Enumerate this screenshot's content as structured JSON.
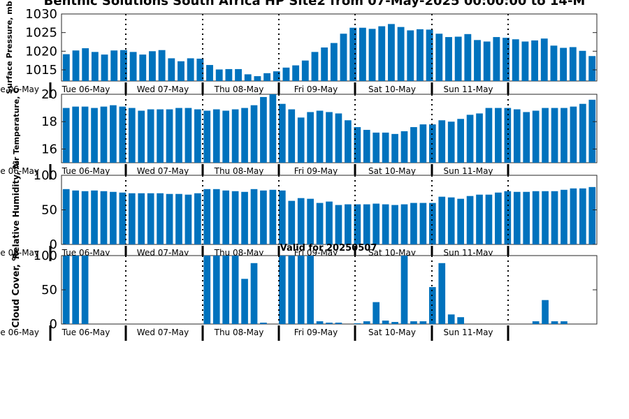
{
  "figure": {
    "title": "Benthic Solutions South Africa HP Site2 from 07-May-2025 00:00:00 to 14-M",
    "annotation": "Valid for 20250507",
    "bar_color": "#0072bd",
    "divider_style": "dotted"
  },
  "chart_data": [
    {
      "type": "bar",
      "id": "pressure",
      "ylabel": "Surface Pressure, mb",
      "ylim": [
        1012,
        1030
      ],
      "yticks": [
        1015,
        1020,
        1025,
        1030
      ],
      "x_tick_labels": [
        "Tue 06-May",
        "Wed 07-May",
        "Thu 08-May",
        "Fri 09-May",
        "Sat 10-May",
        "Sun 11-May"
      ],
      "left_cut_label": "Tue 06-May",
      "values": [
        1019.2,
        1020.2,
        1020.8,
        1019.8,
        1019.1,
        1020.2,
        1020.3,
        1019.8,
        1019.1,
        1020.0,
        1020.3,
        1018.1,
        1017.3,
        1018.1,
        1018.0,
        1016.3,
        1015.1,
        1015.2,
        1015.2,
        1013.8,
        1013.3,
        1014.1,
        1014.6,
        1015.6,
        1016.2,
        1017.5,
        1019.8,
        1021.0,
        1022.2,
        1024.7,
        1026.3,
        1026.3,
        1026.0,
        1026.7,
        1027.3,
        1026.5,
        1025.6,
        1025.9,
        1025.8,
        1024.7,
        1023.8,
        1023.9,
        1024.6,
        1023.0,
        1022.6,
        1023.8,
        1023.6,
        1023.2,
        1022.6,
        1022.9,
        1023.4,
        1021.5,
        1020.9,
        1021.1,
        1020.1,
        1018.7
      ]
    },
    {
      "type": "bar",
      "id": "temperature",
      "ylabel": "Air Temperature, C",
      "ylim": [
        15,
        20
      ],
      "yticks": [
        16,
        18,
        20
      ],
      "x_tick_labels": [
        "Tue 06-May",
        "Wed 07-May",
        "Thu 08-May",
        "Fri 09-May",
        "Sat 10-May",
        "Sun 11-May"
      ],
      "left_cut_label": "Tue 06-May",
      "values": [
        19.0,
        19.1,
        19.1,
        19.0,
        19.1,
        19.2,
        19.1,
        19.0,
        18.8,
        18.9,
        18.9,
        18.9,
        19.0,
        19.0,
        18.9,
        18.8,
        18.9,
        18.8,
        18.9,
        19.0,
        19.2,
        19.8,
        20.0,
        19.3,
        18.9,
        18.3,
        18.7,
        18.8,
        18.7,
        18.6,
        18.1,
        17.6,
        17.4,
        17.2,
        17.2,
        17.1,
        17.3,
        17.6,
        17.8,
        17.8,
        18.1,
        18.0,
        18.2,
        18.5,
        18.6,
        19.0,
        19.0,
        19.0,
        18.9,
        18.7,
        18.8,
        19.0,
        19.0,
        19.0,
        19.1,
        19.3,
        19.6
      ]
    },
    {
      "type": "bar",
      "id": "humidity",
      "ylabel": "Relative Humidity, %",
      "ylim": [
        0,
        100
      ],
      "yticks": [
        0,
        50,
        100
      ],
      "x_tick_labels": [
        "Tue 06-May",
        "Wed 07-May",
        "Thu 08-May",
        "Fri 09-May",
        "Sat 10-May",
        "Sun 11-May"
      ],
      "left_cut_label": "Tue 06-May",
      "values": [
        80,
        78,
        77,
        78,
        77,
        76,
        75,
        74,
        74,
        74,
        74,
        73,
        73,
        72,
        74,
        80,
        80,
        78,
        77,
        76,
        80,
        78,
        79,
        78,
        63,
        67,
        66,
        60,
        62,
        57,
        58,
        58,
        58,
        59,
        58,
        57,
        58,
        60,
        60,
        60,
        69,
        68,
        66,
        70,
        72,
        72,
        75,
        77,
        76,
        76,
        77,
        77,
        77,
        79,
        81,
        81,
        83
      ]
    },
    {
      "type": "bar",
      "id": "cloud",
      "ylabel": "Cloud Cover, %",
      "ylim": [
        0,
        100
      ],
      "yticks": [
        0,
        50,
        100
      ],
      "x_tick_labels": [
        "Tue 06-May",
        "Wed 07-May",
        "Thu 08-May",
        "Fri 09-May",
        "Sat 10-May",
        "Sun 11-May"
      ],
      "left_cut_label": "Tue 06-May",
      "values": [
        100,
        100,
        100,
        0,
        0,
        0,
        0,
        0,
        0,
        0,
        0,
        0,
        0,
        0,
        0,
        100,
        100,
        100,
        100,
        66,
        89,
        2,
        0,
        100,
        100,
        100,
        100,
        4,
        2,
        2,
        0,
        1,
        4,
        32,
        5,
        3,
        100,
        4,
        4,
        54,
        89,
        14,
        10,
        0,
        0,
        0,
        0,
        0,
        0,
        0,
        4,
        35,
        4,
        4,
        0,
        0,
        0
      ]
    }
  ]
}
